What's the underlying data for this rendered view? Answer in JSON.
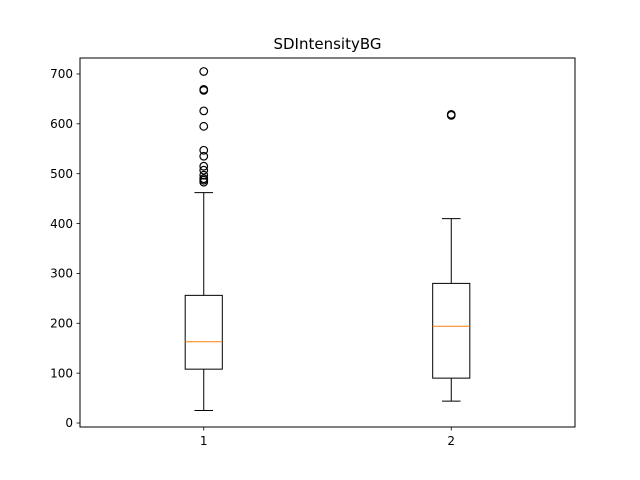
{
  "chart_data": {
    "type": "boxplot",
    "title": "SDIntensityBG",
    "xlabel": "",
    "ylabel": "",
    "ylim": [
      -8,
      732
    ],
    "yticks": [
      0,
      100,
      200,
      300,
      400,
      500,
      600,
      700
    ],
    "categories": [
      "1",
      "2"
    ],
    "boxes": [
      {
        "name": "1",
        "whisker_low": 25,
        "q1": 108,
        "median": 163,
        "q3": 256,
        "whisker_high": 462,
        "outliers": [
          483,
          487,
          490,
          497,
          507,
          515,
          535,
          547,
          595,
          626,
          667,
          669,
          705
        ]
      },
      {
        "name": "2",
        "whisker_low": 44,
        "q1": 90,
        "median": 194,
        "q3": 280,
        "whisker_high": 410,
        "outliers": [
          617,
          619
        ]
      }
    ],
    "colors": {
      "box": "#000000",
      "median": "#ff7f0e",
      "flier": "#000000"
    }
  }
}
